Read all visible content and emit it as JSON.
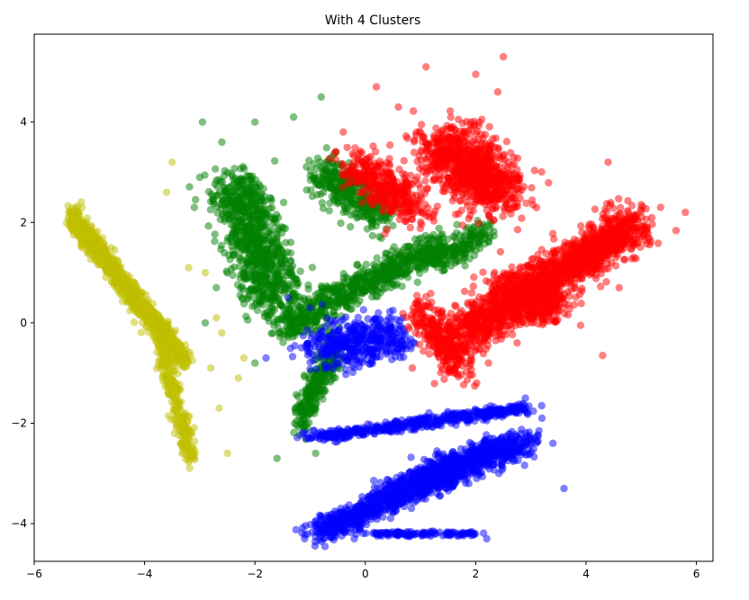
{
  "chart_data": {
    "type": "scatter",
    "title": "With 4 Clusters",
    "xlabel": "",
    "ylabel": "",
    "xlim": [
      -6,
      6.3
    ],
    "ylim": [
      -4.75,
      5.75
    ],
    "xticks": [
      -6,
      -4,
      -2,
      0,
      2,
      4,
      6
    ],
    "yticks": [
      -4,
      -2,
      0,
      2,
      4
    ],
    "grid": false,
    "legend": "none",
    "marker_alpha": 0.5,
    "series": [
      {
        "color": "#bfbf00",
        "clusters": [
          {
            "start": [
              -5.3,
              2.1
            ],
            "end": [
              -3.25,
              -0.8
            ],
            "spread": [
              0.12,
              0.22
            ],
            "count": 1200
          },
          {
            "start": [
              -3.7,
              -0.4
            ],
            "end": [
              -3.15,
              -2.7
            ],
            "spread": [
              0.15,
              0.2
            ],
            "count": 260
          }
        ],
        "outliers": [
          [
            -3.5,
            3.2
          ],
          [
            -3.6,
            2.6
          ],
          [
            -3.2,
            1.1
          ],
          [
            -2.9,
            1.0
          ],
          [
            -2.7,
            0.1
          ],
          [
            -2.6,
            -0.2
          ],
          [
            -2.8,
            -0.9
          ],
          [
            -2.65,
            -1.7
          ],
          [
            -2.5,
            -2.6
          ],
          [
            -2.2,
            -0.7
          ],
          [
            -2.3,
            -1.1
          ]
        ]
      },
      {
        "color": "#008000",
        "clusters": [
          {
            "start": [
              -2.4,
              2.8
            ],
            "end": [
              -1.6,
              0.4
            ],
            "spread": [
              0.55,
              0.45
            ],
            "count": 850
          },
          {
            "start": [
              -0.8,
              3.0
            ],
            "end": [
              0.3,
              2.2
            ],
            "spread": [
              0.35,
              0.4
            ],
            "count": 380
          },
          {
            "start": [
              -1.5,
              -0.1
            ],
            "end": [
              1.4,
              1.6
            ],
            "spread": [
              0.28,
              0.32
            ],
            "count": 700
          },
          {
            "start": [
              -1.2,
              -1.9
            ],
            "end": [
              -0.5,
              -0.4
            ],
            "spread": [
              0.15,
              0.35
            ],
            "count": 300
          },
          {
            "start": [
              1.2,
              1.2
            ],
            "end": [
              2.2,
              1.8
            ],
            "spread": [
              0.3,
              0.3
            ],
            "count": 180
          }
        ],
        "outliers": [
          [
            -2.95,
            4.0
          ],
          [
            -2.0,
            4.0
          ],
          [
            -1.3,
            4.1
          ],
          [
            -0.8,
            4.5
          ],
          [
            -2.6,
            3.6
          ],
          [
            -3.0,
            2.9
          ],
          [
            -3.1,
            2.3
          ],
          [
            -2.7,
            0.7
          ],
          [
            -1.6,
            -2.7
          ],
          [
            -2.0,
            -0.8
          ],
          [
            -0.9,
            -2.6
          ],
          [
            -2.9,
            0.0
          ]
        ]
      },
      {
        "color": "#0000ff",
        "clusters": [
          {
            "start": [
              -1.0,
              -2.3
            ],
            "end": [
              2.9,
              -1.7
            ],
            "spread": [
              0.25,
              0.12
            ],
            "count": 480
          },
          {
            "start": [
              -0.9,
              -4.2
            ],
            "end": [
              2.6,
              -2.4
            ],
            "spread": [
              0.35,
              0.25
            ],
            "count": 950
          },
          {
            "start": [
              0.4,
              -3.4
            ],
            "end": [
              3.0,
              -2.3
            ],
            "spread": [
              0.35,
              0.3
            ],
            "count": 500
          },
          {
            "start": [
              -0.9,
              -0.5
            ],
            "end": [
              0.6,
              -0.3
            ],
            "spread": [
              0.45,
              0.45
            ],
            "count": 420
          },
          {
            "start": [
              0.1,
              -4.2
            ],
            "end": [
              2.0,
              -4.2
            ],
            "spread": [
              0.3,
              0.05
            ],
            "count": 120
          }
        ],
        "outliers": [
          [
            3.6,
            -3.3
          ],
          [
            3.4,
            -2.4
          ],
          [
            3.2,
            -1.9
          ],
          [
            2.9,
            -1.5
          ],
          [
            -1.1,
            -4.3
          ],
          [
            -0.2,
            -4.3
          ],
          [
            2.2,
            -4.3
          ],
          [
            -1.8,
            -0.7
          ],
          [
            -1.4,
            0.5
          ],
          [
            -1.0,
            0.3
          ]
        ]
      },
      {
        "color": "#ff0000",
        "clusters": [
          {
            "start": [
              1.8,
              -0.2
            ],
            "end": [
              4.9,
              2.0
            ],
            "spread": [
              0.45,
              0.4
            ],
            "count": 1700
          },
          {
            "start": [
              1.4,
              3.6
            ],
            "end": [
              2.5,
              2.5
            ],
            "spread": [
              0.65,
              0.55
            ],
            "count": 900
          },
          {
            "start": [
              -0.2,
              3.2
            ],
            "end": [
              0.9,
              2.2
            ],
            "spread": [
              0.45,
              0.4
            ],
            "count": 380
          },
          {
            "start": [
              1.0,
              0.2
            ],
            "end": [
              1.8,
              -0.9
            ],
            "spread": [
              0.35,
              0.4
            ],
            "count": 300
          },
          {
            "start": [
              2.6,
              0.7
            ],
            "end": [
              3.4,
              0.2
            ],
            "spread": [
              0.45,
              0.4
            ],
            "count": 400
          }
        ],
        "outliers": [
          [
            2.5,
            5.3
          ],
          [
            1.1,
            5.1
          ],
          [
            2.0,
            4.95
          ],
          [
            2.4,
            4.6
          ],
          [
            0.2,
            4.7
          ],
          [
            0.6,
            4.3
          ],
          [
            4.4,
            3.2
          ],
          [
            5.8,
            2.2
          ],
          [
            5.35,
            2.3
          ],
          [
            4.6,
            0.7
          ],
          [
            3.9,
            -0.05
          ],
          [
            4.3,
            -0.65
          ],
          [
            2.75,
            -0.4
          ],
          [
            1.5,
            -1.0
          ],
          [
            0.85,
            -0.9
          ],
          [
            -0.4,
            3.8
          ],
          [
            5.1,
            1.8
          ]
        ]
      }
    ]
  }
}
